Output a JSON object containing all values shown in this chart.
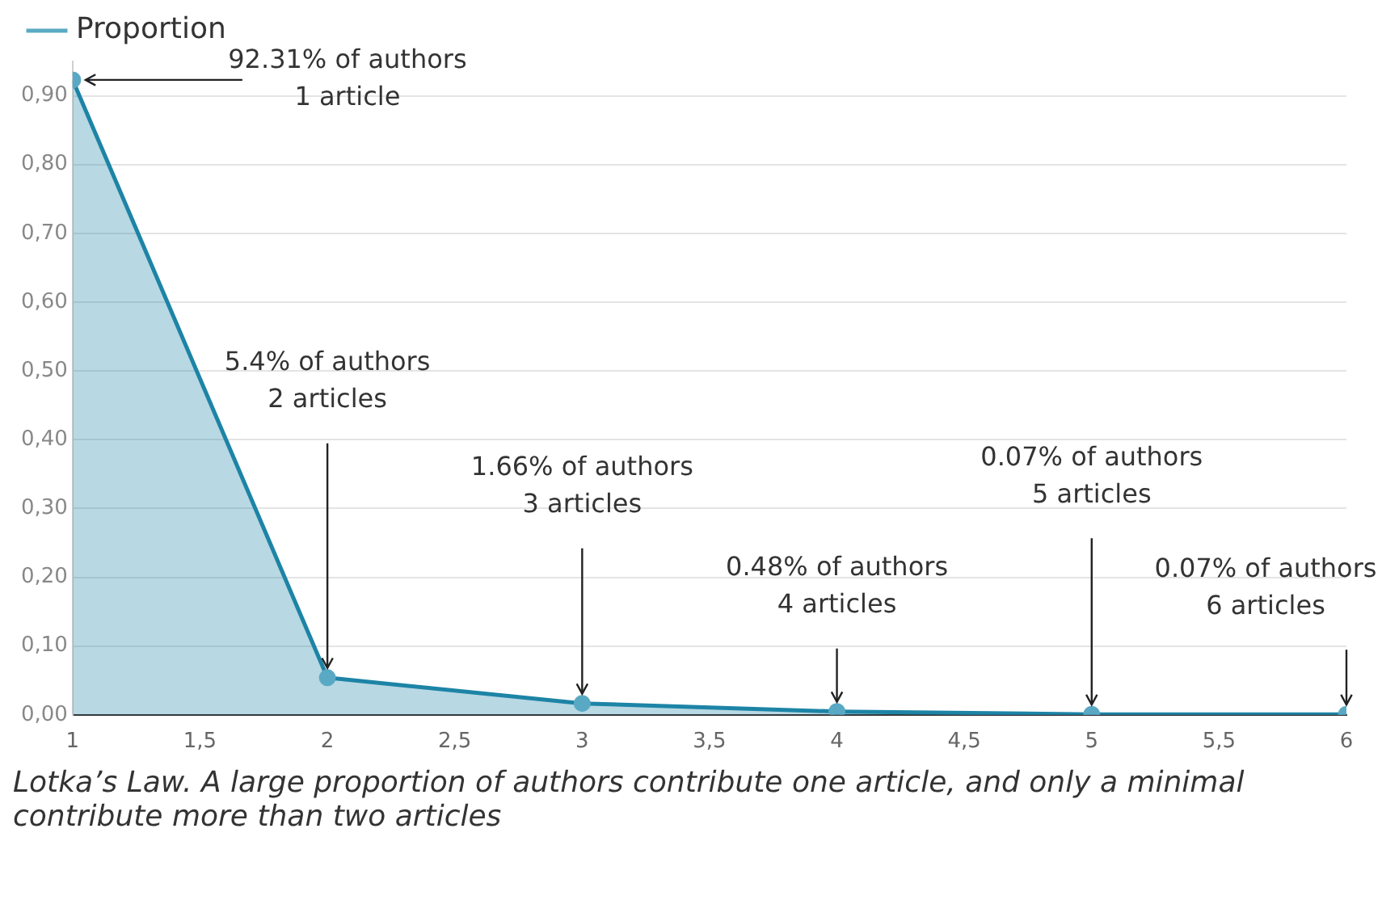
{
  "chart_data": {
    "type": "area",
    "x": [
      1,
      2,
      3,
      4,
      5,
      6
    ],
    "series": [
      {
        "name": "Proportion",
        "color": "#1d84a6",
        "values": [
          0.9231,
          0.054,
          0.0166,
          0.0048,
          0.0007,
          0.0007
        ]
      }
    ],
    "xlim": [
      1,
      6
    ],
    "xticks": [
      1,
      {
        "value": 1.5,
        "label": "1,5"
      },
      2,
      {
        "value": 2.5,
        "label": "2,5"
      },
      3,
      {
        "value": 3.5,
        "label": "3,5"
      },
      4,
      {
        "value": 4.5,
        "label": "4,5"
      },
      5,
      {
        "value": 5.5,
        "label": "5,5"
      },
      6
    ],
    "ylim": [
      0,
      0.95
    ],
    "yticks": [
      {
        "value": 0,
        "label": "0,00"
      },
      {
        "value": 0.1,
        "label": "0,10"
      },
      {
        "value": 0.2,
        "label": "0,20"
      },
      {
        "value": 0.3,
        "label": "0,30"
      },
      {
        "value": 0.4,
        "label": "0,40"
      },
      {
        "value": 0.5,
        "label": "0,50"
      },
      {
        "value": 0.6,
        "label": "0,60"
      },
      {
        "value": 0.7,
        "label": "0,70"
      },
      {
        "value": 0.8,
        "label": "0,80"
      },
      {
        "value": 0.9,
        "label": "0,90"
      }
    ],
    "grid": "y",
    "legend": "top left",
    "marker": "circle",
    "annotations": [
      {
        "text": "92.31% of authors\n1 article",
        "x": 1,
        "y": 0.9231
      },
      {
        "text": "5.4% of authors\n2 articles",
        "x": 2,
        "y": 0.054
      },
      {
        "text": "1.66% of authors\n3 articles",
        "x": 3,
        "y": 0.0166
      },
      {
        "text": "0.48% of authors\n4 articles",
        "x": 4,
        "y": 0.0048
      },
      {
        "text": "0.07% of authors\n5 articles",
        "x": 5,
        "y": 0.0007
      },
      {
        "text": "0.07% of authors\n6 articles",
        "x": 6,
        "y": 0.0007
      },
      "Lotka’s Law. A large proportion of authors contribute one article, and only a minimal contribute more than two articles"
    ]
  }
}
